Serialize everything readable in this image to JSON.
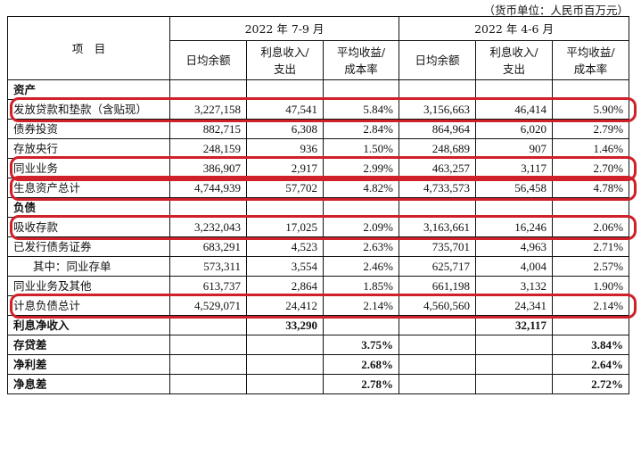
{
  "unit_note": "（货币单位：人民币百万元）",
  "header": {
    "item": "项　目",
    "periods": [
      "2022 年 7-9 月",
      "2022 年 4-6 月"
    ],
    "sub_cols": [
      "日均余额",
      "利息收入/支出",
      "平均收益/成本率"
    ],
    "sub_cols_lines": [
      [
        "日均余额"
      ],
      [
        "利息收入/",
        "支出"
      ],
      [
        "平均收益/",
        "成本率"
      ]
    ]
  },
  "rows": [
    {
      "label": "资产",
      "type": "section",
      "values": [
        "",
        "",
        "",
        "",
        "",
        ""
      ]
    },
    {
      "label": "发放贷款和垫款（含贴现）",
      "type": "data",
      "highlight": true,
      "values": [
        "3,227,158",
        "47,541",
        "5.84%",
        "3,156,663",
        "46,414",
        "5.90%"
      ]
    },
    {
      "label": "债券投资",
      "type": "data",
      "values": [
        "882,715",
        "6,308",
        "2.84%",
        "864,964",
        "6,020",
        "2.79%"
      ]
    },
    {
      "label": "存放央行",
      "type": "data",
      "values": [
        "248,159",
        "936",
        "1.50%",
        "248,689",
        "907",
        "1.46%"
      ]
    },
    {
      "label": "同业业务",
      "type": "data",
      "highlight": true,
      "values": [
        "386,907",
        "2,917",
        "2.99%",
        "463,257",
        "3,117",
        "2.70%"
      ]
    },
    {
      "label": "生息资产总计",
      "type": "data",
      "highlight": true,
      "values": [
        "4,744,939",
        "57,702",
        "4.82%",
        "4,733,573",
        "56,458",
        "4.78%"
      ]
    },
    {
      "label": "负债",
      "type": "section",
      "values": [
        "",
        "",
        "",
        "",
        "",
        ""
      ]
    },
    {
      "label": "吸收存款",
      "type": "data",
      "highlight": true,
      "values": [
        "3,232,043",
        "17,025",
        "2.09%",
        "3,163,661",
        "16,246",
        "2.06%"
      ]
    },
    {
      "label": "已发行债务证券",
      "type": "data",
      "values": [
        "683,291",
        "4,523",
        "2.63%",
        "735,701",
        "4,963",
        "2.71%"
      ]
    },
    {
      "label": "其中：同业存单",
      "type": "indent",
      "values": [
        "573,311",
        "3,554",
        "2.46%",
        "625,717",
        "4,004",
        "2.57%"
      ]
    },
    {
      "label": "同业业务及其他",
      "type": "data",
      "values": [
        "613,737",
        "2,864",
        "1.85%",
        "661,198",
        "3,132",
        "1.90%"
      ]
    },
    {
      "label": "计息负债总计",
      "type": "data",
      "highlight": true,
      "values": [
        "4,529,071",
        "24,412",
        "2.14%",
        "4,560,560",
        "24,341",
        "2.14%"
      ]
    },
    {
      "label": "利息净收入",
      "type": "bold",
      "values": [
        "",
        "33,290",
        "",
        "",
        "32,117",
        ""
      ]
    },
    {
      "label": "存贷差",
      "type": "bold",
      "values": [
        "",
        "",
        "3.75%",
        "",
        "",
        "3.84%"
      ]
    },
    {
      "label": "净利差",
      "type": "bold",
      "values": [
        "",
        "",
        "2.68%",
        "",
        "",
        "2.64%"
      ]
    },
    {
      "label": "净息差",
      "type": "bold",
      "values": [
        "",
        "",
        "2.78%",
        "",
        "",
        "2.72%"
      ]
    }
  ],
  "highlight_color": "#d0202a"
}
